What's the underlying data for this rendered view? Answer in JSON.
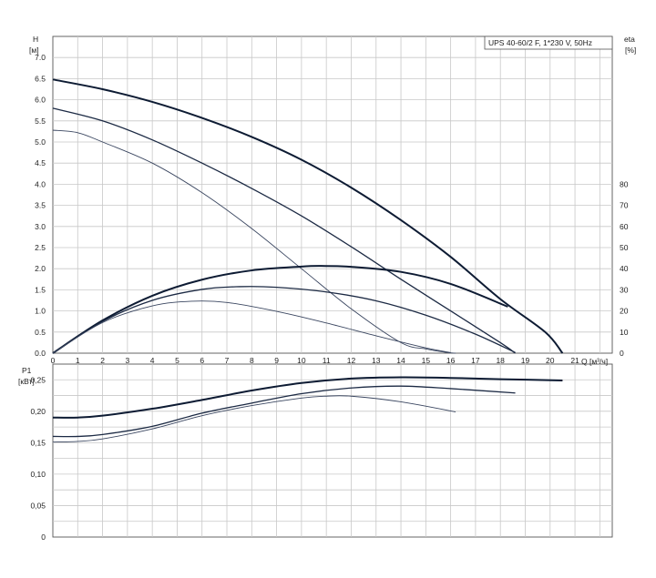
{
  "chart_data": [
    {
      "type": "line",
      "name_box": "UPS 40-60/2 F, 1*230 V, 50Hz",
      "ylabel_left": "H",
      "yunit_left": "[м]",
      "ylabel_right": "eta",
      "yunit_right": "[%]",
      "xlabel": "Q [м³/ч]",
      "xlim": [
        0,
        22.5
      ],
      "ylim_left": [
        0,
        7.5
      ],
      "ylim_right_ticks": [
        0,
        10,
        20,
        30,
        40,
        50,
        60,
        70,
        80
      ],
      "x_ticks": [
        "0",
        "1",
        "2",
        "3",
        "4",
        "5",
        "6",
        "7",
        "8",
        "9",
        "10",
        "11",
        "12",
        "13",
        "14",
        "15",
        "16",
        "17",
        "18",
        "19",
        "20",
        "21"
      ],
      "y_ticks_left": [
        "0.0",
        "0.5",
        "1.0",
        "1.5",
        "2.0",
        "2.5",
        "3.0",
        "3.5",
        "4.0",
        "4.5",
        "5.0",
        "5.5",
        "6.0",
        "6.5",
        "7.0"
      ],
      "y_ticks_right": [
        "0",
        "10",
        "20",
        "30",
        "40",
        "50",
        "60",
        "70",
        "80"
      ],
      "grid": true,
      "series": [
        {
          "kind": "head",
          "x": [
            0,
            2,
            4,
            6,
            8,
            10,
            12,
            14,
            16,
            18,
            19.8,
            20.5
          ],
          "y": [
            6.48,
            6.25,
            5.95,
            5.57,
            5.12,
            4.58,
            3.92,
            3.15,
            2.28,
            1.28,
            0.5,
            0.0
          ]
        },
        {
          "kind": "head",
          "x": [
            0,
            2,
            4,
            6,
            8,
            10,
            12,
            14,
            16,
            18,
            18.6
          ],
          "y": [
            5.8,
            5.5,
            5.05,
            4.5,
            3.9,
            3.25,
            2.52,
            1.75,
            1.0,
            0.25,
            0.0
          ]
        },
        {
          "kind": "head",
          "x": [
            0,
            1,
            2,
            4,
            6,
            8,
            10,
            12,
            14,
            15,
            15.8,
            16.2
          ],
          "y": [
            5.28,
            5.22,
            5.0,
            4.5,
            3.8,
            2.95,
            2.0,
            1.05,
            0.25,
            0.1,
            0.02,
            0.0
          ]
        },
        {
          "kind": "eta",
          "x": [
            0,
            2,
            4,
            6,
            8,
            10,
            10.8,
            12,
            14,
            16,
            18.3
          ],
          "y": [
            0,
            15.5,
            27.2,
            34.8,
            39.2,
            41.0,
            41.3,
            40.9,
            38.5,
            32.8,
            22.0
          ]
        },
        {
          "kind": "eta",
          "x": [
            0,
            2,
            4,
            6,
            7.5,
            9,
            11,
            13,
            15,
            17,
            18.6
          ],
          "y": [
            0,
            15.0,
            25.0,
            30.2,
            31.5,
            31.2,
            29.0,
            24.8,
            18.0,
            9.0,
            0.3
          ]
        },
        {
          "kind": "eta",
          "x": [
            0,
            2,
            4,
            5.6,
            7,
            9,
            11,
            13,
            15,
            16
          ],
          "y": [
            0,
            14.5,
            22.4,
            24.6,
            24.0,
            19.8,
            14.3,
            8.2,
            2.5,
            0.3
          ]
        }
      ]
    },
    {
      "type": "line",
      "ylabel": "P1",
      "yunit": "[кВт]",
      "ylim": [
        0,
        0.275
      ],
      "y_ticks": [
        "0",
        "0,05",
        "0,10",
        "0,15",
        "0,20",
        "0,25"
      ],
      "grid": true,
      "series": [
        {
          "kind": "power",
          "x": [
            0,
            1,
            2,
            4,
            6,
            8,
            10,
            12,
            14,
            16,
            18,
            20.5
          ],
          "y": [
            0.19,
            0.19,
            0.193,
            0.204,
            0.218,
            0.233,
            0.245,
            0.252,
            0.254,
            0.253,
            0.251,
            0.249
          ]
        },
        {
          "kind": "power",
          "x": [
            0,
            1,
            2,
            4,
            6,
            8,
            10,
            12,
            14,
            16,
            18.6
          ],
          "y": [
            0.16,
            0.16,
            0.163,
            0.176,
            0.197,
            0.213,
            0.228,
            0.237,
            0.24,
            0.236,
            0.229
          ]
        },
        {
          "kind": "power",
          "x": [
            0,
            1,
            2,
            4,
            6,
            8,
            10,
            11,
            12,
            14,
            16.2
          ],
          "y": [
            0.151,
            0.152,
            0.156,
            0.172,
            0.193,
            0.209,
            0.221,
            0.224,
            0.224,
            0.215,
            0.199
          ]
        }
      ]
    }
  ]
}
